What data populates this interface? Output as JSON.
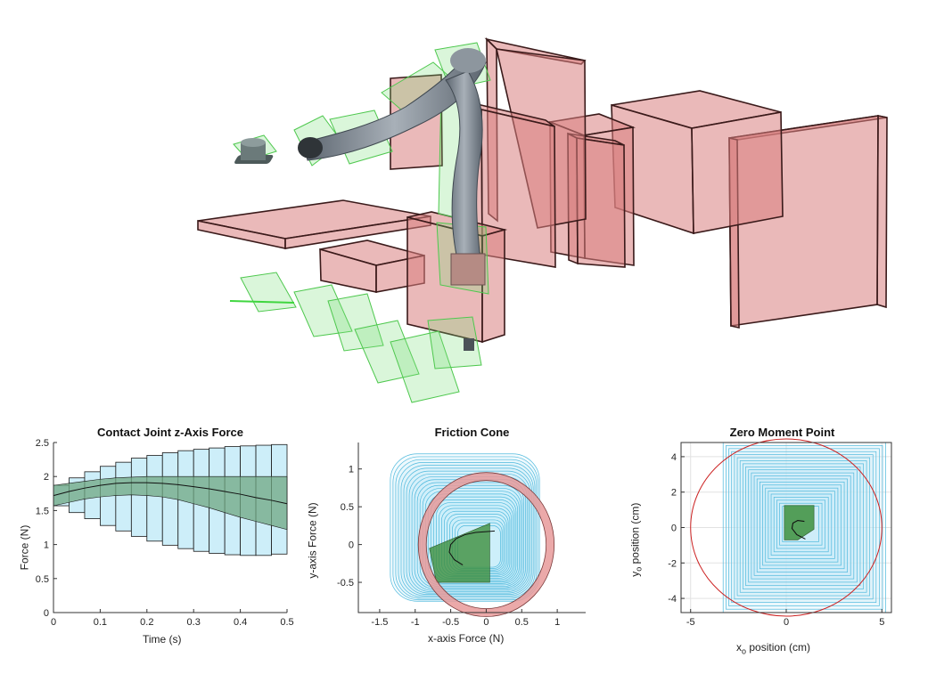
{
  "colors": {
    "obstacle_fill": "#d98080",
    "obstacle_stroke": "#3a1a1a",
    "robot": "#7d8792",
    "green_wire": "#5ed45e",
    "cone_blue": "#4fb9dd",
    "light_blue": "#cdeef9",
    "green_fill": "#3d8f3d",
    "zmp_circle": "#cc2222",
    "friction_ring": "#e89a9a"
  },
  "chart_data": [
    {
      "type": "area",
      "title": "Contact Joint z-Axis Force",
      "xlabel": "Time (s)",
      "ylabel": "Force (N)",
      "xlim": [
        0,
        0.5
      ],
      "ylim": [
        0,
        2.5
      ],
      "xticks": [
        "0",
        "0.1",
        "0.2",
        "0.3",
        "0.4",
        "0.5"
      ],
      "yticks": [
        "0",
        "0.5",
        "1",
        "1.5",
        "2",
        "2.5"
      ],
      "x": [
        0.0,
        0.0333,
        0.0667,
        0.1,
        0.1333,
        0.1667,
        0.2,
        0.2333,
        0.2667,
        0.3,
        0.3333,
        0.3667,
        0.4,
        0.4333,
        0.4667,
        0.5
      ],
      "series": [
        {
          "values": [
            1.72,
            1.78,
            1.83,
            1.87,
            1.9,
            1.91,
            1.91,
            1.9,
            1.88,
            1.85,
            1.82,
            1.78,
            1.74,
            1.69,
            1.65,
            1.6
          ]
        }
      ],
      "outer_upper": [
        1.87,
        1.98,
        2.07,
        2.15,
        2.21,
        2.27,
        2.31,
        2.35,
        2.38,
        2.4,
        2.42,
        2.44,
        2.45,
        2.46,
        2.47,
        2.48
      ],
      "outer_lower": [
        1.57,
        1.47,
        1.38,
        1.28,
        1.2,
        1.12,
        1.05,
        0.99,
        0.94,
        0.9,
        0.87,
        0.85,
        0.84,
        0.84,
        0.86,
        0.88
      ],
      "inner_upper": [
        1.87,
        1.9,
        1.93,
        1.96,
        1.98,
        1.99,
        2.0,
        2.0,
        2.0,
        2.0,
        2.0,
        2.0,
        2.0,
        2.0,
        2.0,
        2.0
      ],
      "inner_lower": [
        1.57,
        1.62,
        1.67,
        1.7,
        1.72,
        1.73,
        1.72,
        1.7,
        1.66,
        1.6,
        1.54,
        1.47,
        1.4,
        1.34,
        1.28,
        1.22
      ],
      "grid": false
    },
    {
      "type": "line",
      "title": "Friction Cone",
      "xlabel": "x-axis Force (N)",
      "ylabel": "y-axis Force (N)",
      "xlim": [
        -1.8,
        1.4
      ],
      "ylim": [
        -0.9,
        1.35
      ],
      "xticks": [
        "-1.5",
        "-1",
        "-0.5",
        "0",
        "0.5",
        "1"
      ],
      "yticks": [
        "-0.5",
        "0",
        "0.5",
        "1"
      ],
      "friction_circle": {
        "center": [
          0,
          0
        ],
        "radius": 0.9
      },
      "trajectory": {
        "x": [
          -0.33,
          -0.45,
          -0.52,
          -0.5,
          -0.42,
          -0.3,
          -0.15,
          0.0,
          0.12
        ],
        "y": [
          -0.27,
          -0.2,
          -0.1,
          0.0,
          0.08,
          0.13,
          0.16,
          0.17,
          0.18
        ]
      },
      "grid": false
    },
    {
      "type": "line",
      "title": "Zero Moment Point",
      "xlabel": "xo position (cm)",
      "xlabel_main": "x",
      "xlabel_sub": "o",
      "xlabel_rest": " position (cm)",
      "ylabel_main": "y",
      "ylabel_sub": "o",
      "ylabel_rest": " position (cm)",
      "xlim": [
        -5.5,
        5.5
      ],
      "ylim": [
        -4.8,
        4.8
      ],
      "xticks": [
        "-5",
        "0",
        "5"
      ],
      "yticks": [
        "-4",
        "-2",
        "0",
        "2",
        "4"
      ],
      "support_circle": {
        "center": [
          0,
          0
        ],
        "radius": 5.0
      },
      "trajectory": {
        "x": [
          1.0,
          0.55,
          0.3,
          0.35,
          0.6,
          0.95
        ],
        "y": [
          -0.65,
          -0.4,
          -0.05,
          0.25,
          0.4,
          0.35
        ]
      },
      "grid": true
    }
  ]
}
